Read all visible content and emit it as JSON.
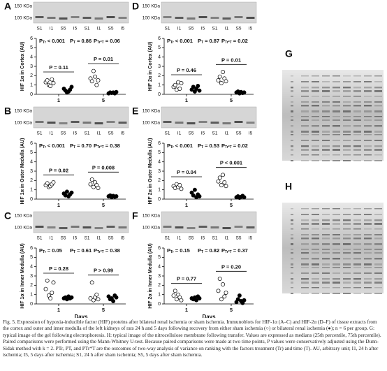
{
  "p_symbol": "P",
  "panels": [
    {
      "letter": "A",
      "kda": [
        "150 KDa",
        "100 KDa"
      ],
      "lanes": [
        "S1",
        "I1",
        "S5",
        "I5",
        "S1",
        "I1",
        "S5",
        "I5"
      ],
      "ylabel": "HIF 1α in Cortex (AU)",
      "ylim": [
        0,
        6
      ],
      "yticks": [
        0,
        1,
        2,
        3,
        4,
        5,
        6
      ],
      "stats": [
        {
          "sub": "Tr",
          "text": "< 0.001"
        },
        {
          "sub": "T",
          "text": "= 0.86"
        },
        {
          "sub": "Tr*T",
          "text": "= 0.06"
        }
      ],
      "categories": [
        "1",
        "5"
      ],
      "comparisons": [
        "P = 0.11",
        "P = 0.01"
      ],
      "sham": [
        [
          1.3,
          1.5,
          1.0,
          0.9,
          1.6,
          1.2
        ],
        [
          1.7,
          1.4,
          2.5,
          1.9,
          1.0,
          1.5
        ]
      ],
      "ischemia": [
        [
          0.6,
          0.4,
          0.2,
          0.3,
          0.5,
          0.8
        ],
        [
          0.1,
          0.2,
          0.15,
          0.2,
          0.1,
          0.25
        ]
      ]
    },
    {
      "letter": "B",
      "kda": [
        "150 KDa",
        "100 KDa"
      ],
      "lanes": [
        "S1",
        "I1",
        "S5",
        "I5",
        "S1",
        "I1",
        "S5",
        "I5"
      ],
      "ylabel": "HIF 1α in Outer Medulla (AU)",
      "ylim": [
        0,
        6
      ],
      "yticks": [
        0,
        1,
        2,
        3,
        4,
        5,
        6
      ],
      "stats": [
        {
          "sub": "Tr",
          "text": "< 0.001"
        },
        {
          "sub": "T",
          "text": "= 0.70"
        },
        {
          "sub": "Tr*T",
          "text": "= 0.38"
        }
      ],
      "categories": [
        "1",
        "5"
      ],
      "comparisons": [
        "P = 0.02",
        "P = 0.008"
      ],
      "sham": [
        [
          1.5,
          1.7,
          1.3,
          1.4,
          1.6,
          1.8
        ],
        [
          1.6,
          2.1,
          1.3,
          1.8,
          1.5,
          1.2
        ]
      ],
      "ischemia": [
        [
          0.6,
          0.4,
          0.8,
          0.3,
          0.5,
          0.7
        ],
        [
          0.3,
          0.4,
          0.2,
          0.35,
          0.25,
          0.3
        ]
      ]
    },
    {
      "letter": "C",
      "kda": [
        "150 KDa",
        "100 KDa"
      ],
      "lanes": [
        "S1",
        "I1",
        "S5",
        "I5",
        "S1",
        "I1",
        "S5",
        "I5"
      ],
      "ylabel": "HIF 1α in Inner Medulla (AU)",
      "ylim": [
        0,
        6
      ],
      "yticks": [
        0,
        1,
        2,
        3,
        4,
        5,
        6
      ],
      "stats": [
        {
          "sub": "Tr",
          "text": "= 0.05"
        },
        {
          "sub": "T",
          "text": "= 0.61"
        },
        {
          "sub": "Tr*T",
          "text": "= 0.38"
        }
      ],
      "categories": [
        "1",
        "5"
      ],
      "comparisons": [
        "P = 0.28",
        "P > 0.99"
      ],
      "xlabel": "Days",
      "sham": [
        [
          1.6,
          2.5,
          0.9,
          0.6,
          1.2,
          2.3
        ],
        [
          0.6,
          2.3,
          0.4,
          0.7,
          1.0,
          0.5
        ]
      ],
      "ischemia": [
        [
          0.6,
          0.7,
          0.5,
          0.8,
          0.6,
          0.7
        ],
        [
          0.8,
          0.5,
          0.6,
          0.3,
          0.9,
          0.7
        ]
      ]
    },
    {
      "letter": "D",
      "kda": [
        "150 KDa",
        "100 KDa"
      ],
      "lanes": [
        "S1",
        "I1",
        "S5",
        "I5",
        "S1",
        "I1",
        "S5",
        "I5"
      ],
      "ylabel": "HIF 2α in Cortex (AU)",
      "ylim": [
        0,
        6
      ],
      "yticks": [
        0,
        1,
        2,
        3,
        4,
        5,
        6
      ],
      "stats": [
        {
          "sub": "Tr",
          "text": "< 0.001"
        },
        {
          "sub": "T",
          "text": "= 0.87"
        },
        {
          "sub": "Tr*T",
          "text": "= 0.02"
        }
      ],
      "categories": [
        "1",
        "5"
      ],
      "comparisons": [
        "P = 0.46",
        "P = 0.01"
      ],
      "sham": [
        [
          0.8,
          1.0,
          0.5,
          1.3,
          0.6,
          1.2
        ],
        [
          1.5,
          1.9,
          1.2,
          2.4,
          1.7,
          1.4
        ]
      ],
      "ischemia": [
        [
          0.5,
          0.8,
          0.3,
          0.6,
          0.9,
          0.4
        ],
        [
          0.2,
          0.3,
          0.1,
          0.25,
          0.15,
          0.2
        ]
      ]
    },
    {
      "letter": "E",
      "kda": [
        "150 KDa",
        "100 KDa"
      ],
      "lanes": [
        "S1",
        "I1",
        "S5",
        "I5",
        "S1",
        "I1",
        "S5",
        "I5"
      ],
      "ylabel": "HIF 2α in Outer Medulla (AU)",
      "ylim": [
        0,
        6
      ],
      "yticks": [
        0,
        1,
        2,
        3,
        4,
        5,
        6
      ],
      "stats": [
        {
          "sub": "Tr",
          "text": "< 0.001"
        },
        {
          "sub": "T",
          "text": "= 0.53"
        },
        {
          "sub": "Tr*T",
          "text": "= 0.02"
        }
      ],
      "categories": [
        "1",
        "5"
      ],
      "comparisons": [
        "P = 0.04",
        "P < 0.001"
      ],
      "sham": [
        [
          1.4,
          1.2,
          1.6,
          1.3,
          1.5,
          1.1
        ],
        [
          1.9,
          2.3,
          1.5,
          2.6,
          1.8,
          1.4
        ]
      ],
      "ischemia": [
        [
          0.7,
          0.4,
          1.0,
          0.2,
          0.5,
          0.3
        ],
        [
          0.2,
          0.3,
          0.15,
          0.25,
          0.35,
          0.2
        ]
      ]
    },
    {
      "letter": "F",
      "kda": [
        "150 KDa",
        "100 KDa"
      ],
      "lanes": [
        "S1",
        "I1",
        "S5",
        "I5",
        "S1",
        "I1",
        "S5",
        "I5"
      ],
      "ylabel": "HIF 2α in Inner Medulla (AU)",
      "ylim": [
        0,
        6
      ],
      "yticks": [
        0,
        1,
        2,
        3,
        4,
        5,
        6
      ],
      "stats": [
        {
          "sub": "Tr",
          "text": "= 0.15"
        },
        {
          "sub": "T",
          "text": "= 0.82"
        },
        {
          "sub": "Tr*T",
          "text": "= 0.37"
        }
      ],
      "categories": [
        "1",
        "5"
      ],
      "comparisons": [
        "P = 0.77",
        "P = 0.20"
      ],
      "xlabel": "Days",
      "sham": [
        [
          0.9,
          1.4,
          0.5,
          1.0,
          0.7,
          0.4
        ],
        [
          1.4,
          2.7,
          0.5,
          2.1,
          0.8,
          1.2
        ]
      ],
      "ischemia": [
        [
          0.6,
          0.5,
          0.7,
          0.4,
          0.8,
          0.6
        ],
        [
          0.2,
          0.5,
          0.9,
          0.3,
          0.1,
          0.4
        ]
      ]
    }
  ],
  "gels": [
    "G",
    "H"
  ],
  "caption": "Fig. 5. Expression of hypoxia-inducible factor (HIF) proteins after bilateral renal ischemia or sham ischemia. Immunoblots for HIF-1α (A–C) and HIF-2α (D–F) of tissue extracts from the cortex and outer and inner medulla of the left kidneys of rats 24 h and 5 days following recovery from either sham ischemia (○) or bilateral renal ischemia (●); n = 6 per group. G: typical image of the gel following electrophoresis. H: typical image of the nitrocellulose membrane following transfer. Values are expressed as medians (25th percentile, 75th percentile). Paired comparisons were performed using the Mann-Whitney U-test. Because paired comparisons were made at two time points, P values were conservatively adjusted using the Dunn-Sidak method with k = 2. PTr, PT, and PTr*T are the outcomes of two-way analysis of variance on ranking with the factors treatment (Tr) and time (T). AU, arbitrary unit; I1, 24 h after ischemia; I5, 5 days after ischemia; S1, 24 h after sham ischemia; S5, 5 days after sham ischemia."
}
